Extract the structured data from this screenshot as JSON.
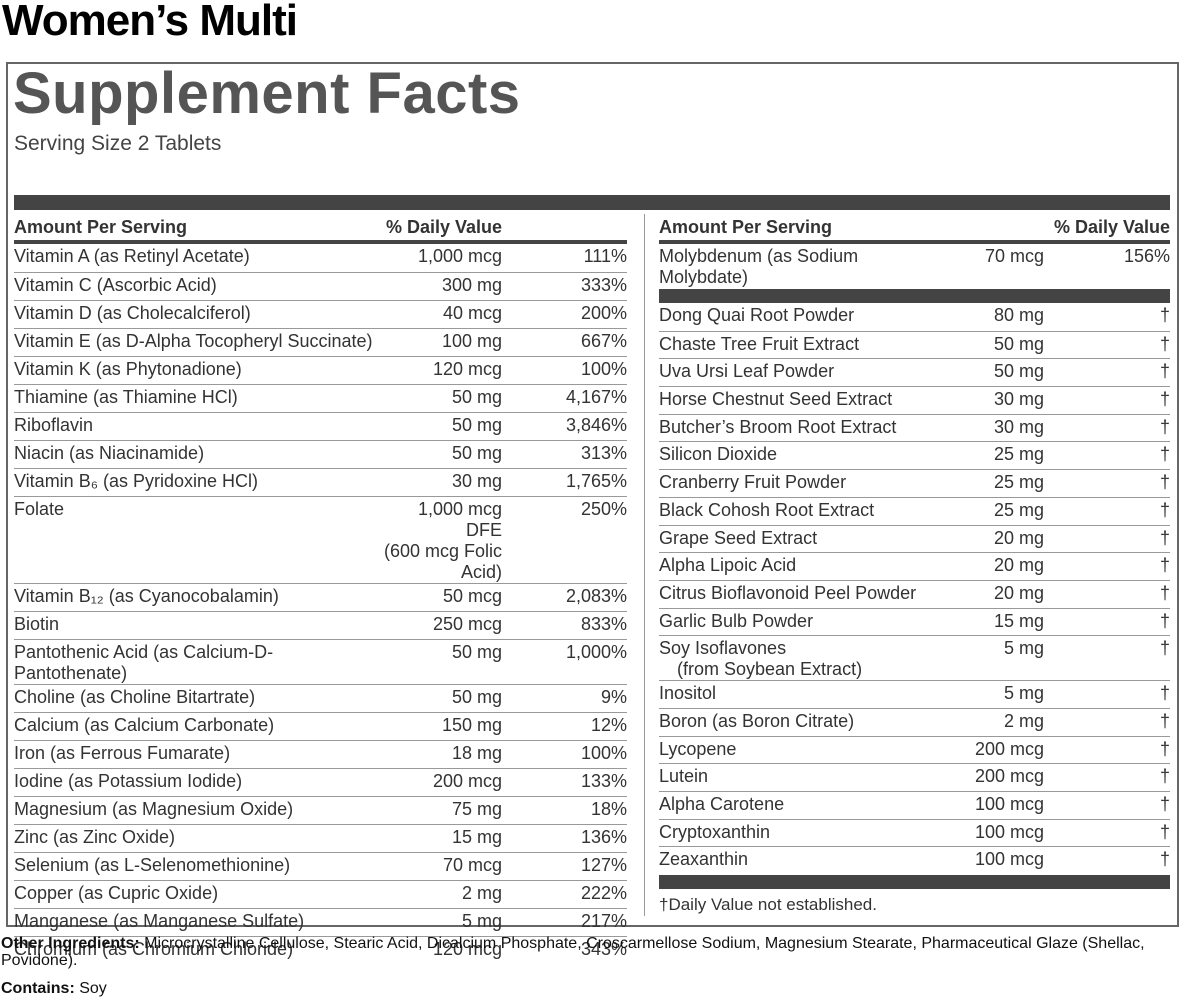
{
  "product_name": "Women’s Multi",
  "panel": {
    "title": "Supplement Facts",
    "serving_size": "Serving Size 2 Tablets",
    "columns": [
      {
        "header": [
          "Amount Per Serving",
          "% Daily Value"
        ],
        "sections": [
          [
            [
              "Vitamin A (as Retinyl Acetate)",
              "1,000 mcg",
              "111%"
            ],
            [
              "Vitamin C (Ascorbic Acid)",
              "300 mg",
              "333%"
            ],
            [
              "Vitamin D (as Cholecalciferol)",
              "40 mcg",
              "200%"
            ],
            [
              "Vitamin E (as D-Alpha Tocopheryl Succinate)",
              "100 mg",
              "667%"
            ],
            [
              "Vitamin K (as Phytonadione)",
              "120 mcg",
              "100%"
            ],
            [
              "Thiamine (as Thiamine HCl)",
              "50 mg",
              "4,167%"
            ],
            [
              "Riboflavin",
              "50 mg",
              "3,846%"
            ],
            [
              "Niacin (as Niacinamide)",
              "50 mg",
              "313%"
            ],
            [
              "Vitamin B₆ (as Pyridoxine HCl)",
              "30 mg",
              "1,765%"
            ],
            [
              "Folate",
              [
                "1,000 mcg DFE",
                "(600 mcg Folic Acid)"
              ],
              "250%"
            ],
            [
              "Vitamin B₁₂ (as Cyanocobalamin)",
              "50 mcg",
              "2,083%"
            ],
            [
              "Biotin",
              "250 mcg",
              "833%"
            ],
            [
              "Pantothenic Acid (as Calcium-D-Pantothenate)",
              "50 mg",
              "1,000%"
            ],
            [
              "Choline (as Choline Bitartrate)",
              "50 mg",
              "9%"
            ],
            [
              "Calcium (as Calcium Carbonate)",
              "150 mg",
              "12%"
            ],
            [
              "Iron (as Ferrous Fumarate)",
              "18 mg",
              "100%"
            ],
            [
              "Iodine (as Potassium Iodide)",
              "200 mcg",
              "133%"
            ],
            [
              "Magnesium (as Magnesium Oxide)",
              "75 mg",
              "18%"
            ],
            [
              "Zinc (as Zinc Oxide)",
              "15 mg",
              "136%"
            ],
            [
              "Selenium (as L-Selenomethionine)",
              "70 mcg",
              "127%"
            ],
            [
              "Copper (as Cupric Oxide)",
              "2 mg",
              "222%"
            ],
            [
              "Manganese (as Manganese Sulfate)",
              "5 mg",
              "217%"
            ],
            [
              "Chromium (as Chromium Chloride)",
              "120 mcg",
              "343%"
            ]
          ]
        ]
      },
      {
        "header": [
          "Amount Per Serving",
          "% Daily Value"
        ],
        "sections": [
          [
            [
              "Molybdenum (as Sodium Molybdate)",
              "70 mcg",
              "156%"
            ]
          ],
          [
            [
              "Dong Quai Root Powder",
              "80 mg",
              "†"
            ],
            [
              "Chaste Tree Fruit Extract",
              "50 mg",
              "†"
            ],
            [
              "Uva Ursi Leaf Powder",
              "50 mg",
              "†"
            ],
            [
              "Horse Chestnut Seed Extract",
              "30 mg",
              "†"
            ],
            [
              "Butcher’s Broom Root Extract",
              "30 mg",
              "†"
            ],
            [
              "Silicon Dioxide",
              "25 mg",
              "†"
            ],
            [
              "Cranberry Fruit Powder",
              "25 mg",
              "†"
            ],
            [
              "Black Cohosh Root Extract",
              "25 mg",
              "†"
            ],
            [
              "Grape Seed Extract",
              "20 mg",
              "†"
            ],
            [
              "Alpha Lipoic Acid",
              "20 mg",
              "†"
            ],
            [
              "Citrus Bioflavonoid Peel Powder",
              "20 mg",
              "†"
            ],
            [
              "Garlic Bulb Powder",
              "15 mg",
              "†"
            ],
            [
              [
                "Soy Isoflavones",
                "(from Soybean Extract)"
              ],
              "5 mg",
              "†"
            ],
            [
              "Inositol",
              "5 mg",
              "†"
            ],
            [
              "Boron (as Boron Citrate)",
              "2 mg",
              "†"
            ],
            [
              "Lycopene",
              "200 mcg",
              "†"
            ],
            [
              "Lutein",
              "200 mcg",
              "†"
            ],
            [
              "Alpha Carotene",
              "100 mcg",
              "†"
            ],
            [
              "Cryptoxanthin",
              "100 mcg",
              "†"
            ],
            [
              "Zeaxanthin",
              "100 mcg",
              "†"
            ]
          ]
        ],
        "footnote": "†Daily Value not established."
      }
    ]
  },
  "other_ingredients": {
    "label": "Other Ingredients:",
    "text": "Microcrystalline Cellulose, Stearic Acid, Dicalcium Phosphate, Croscarmellose Sodium, Magnesium Stearate, Pharmaceutical Glaze (Shellac, Povidone)."
  },
  "contains": {
    "label": "Contains:",
    "text": "Soy"
  }
}
